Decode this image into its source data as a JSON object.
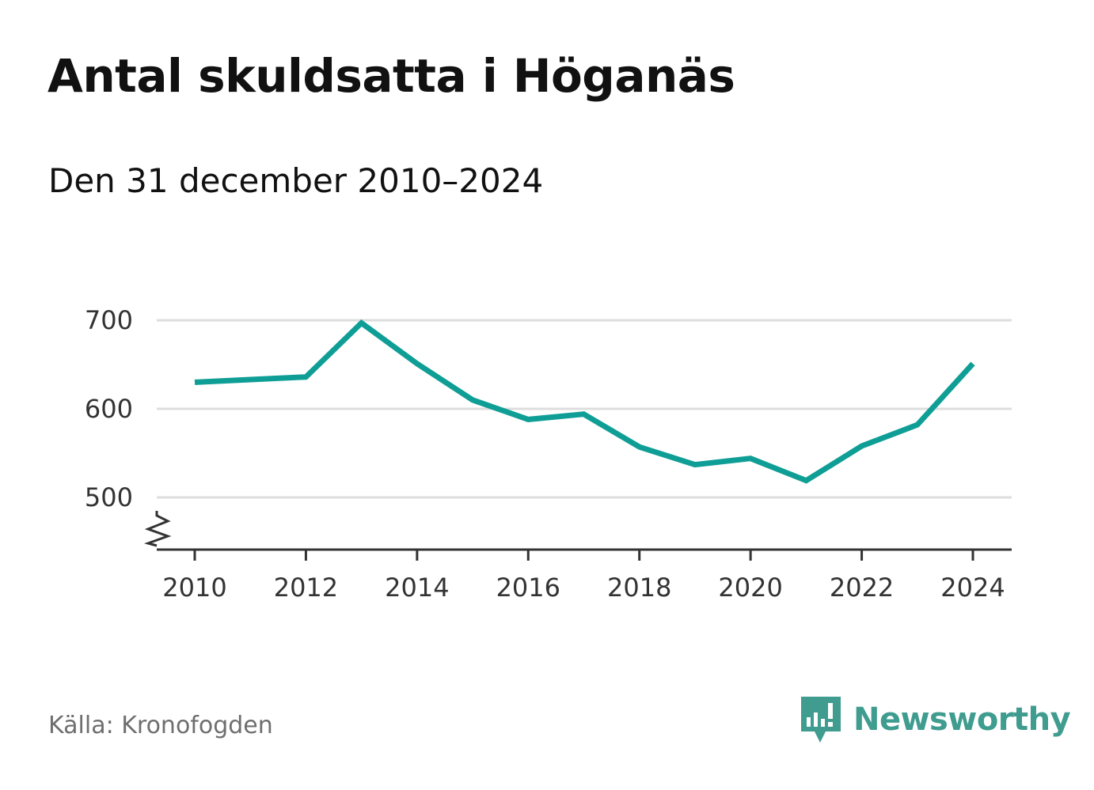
{
  "header": {
    "title": "Antal skuldsatta i Höganäs",
    "subtitle": "Den 31 december 2010–2024"
  },
  "footer": {
    "source": "Källa: Kronofogden",
    "brand_name": "Newsworthy",
    "brand_icon": "bar-chart-speech-bubble-icon"
  },
  "colors": {
    "line": "#0f9e96",
    "grid": "#dddddd",
    "axis": "#333333",
    "brand": "#3f9c8f"
  },
  "chart_data": {
    "type": "line",
    "title": "Antal skuldsatta i Höganäs",
    "subtitle": "Den 31 december 2010–2024",
    "xlabel": "",
    "ylabel": "",
    "x": [
      2010,
      2011,
      2012,
      2013,
      2014,
      2015,
      2016,
      2017,
      2018,
      2019,
      2020,
      2021,
      2022,
      2023,
      2024
    ],
    "series": [
      {
        "values": [
          630,
          633,
          636,
          697,
          651,
          610,
          588,
          594,
          557,
          537,
          544,
          519,
          558,
          582,
          651
        ]
      }
    ],
    "x_ticks": [
      "2010",
      "2012",
      "2014",
      "2016",
      "2018",
      "2020",
      "2022",
      "2024"
    ],
    "y_ticks": [
      "500",
      "600",
      "700"
    ],
    "xlim": [
      2010,
      2024
    ],
    "ylim": [
      440,
      700
    ],
    "y_axis_break": true,
    "grid": true,
    "legend": "none"
  }
}
